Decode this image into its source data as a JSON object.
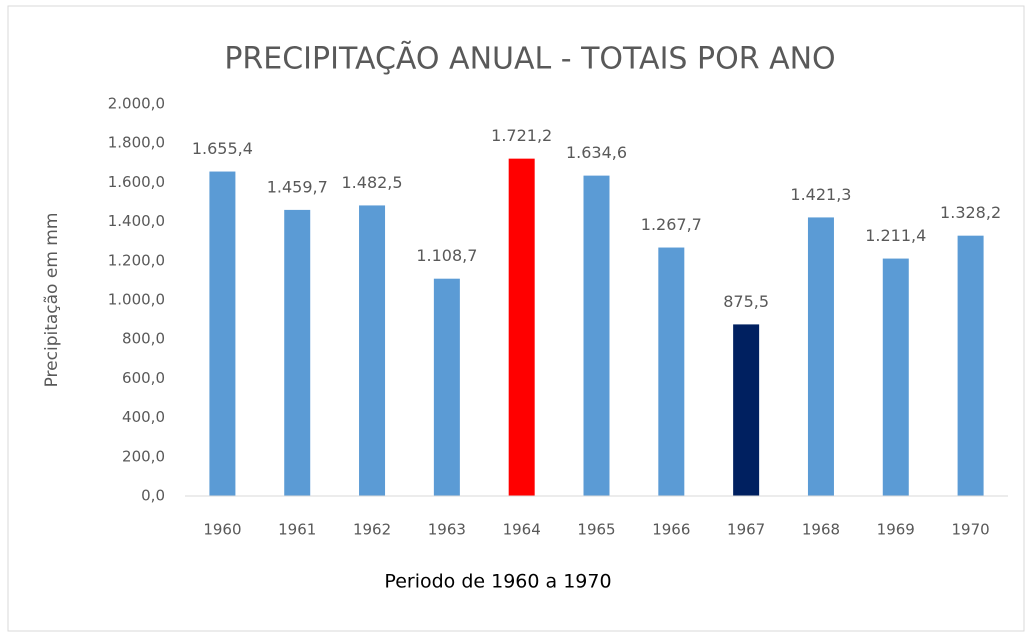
{
  "chart_data": {
    "type": "bar",
    "title": "PRECIPITAÇÃO ANUAL - TOTAIS POR ANO",
    "x_label": "Periodo de 1960 a 1970",
    "y_label": "Precipitação em mm",
    "categories": [
      "1960",
      "1961",
      "1962",
      "1963",
      "1964",
      "1965",
      "1966",
      "1967",
      "1968",
      "1969",
      "1970"
    ],
    "values": [
      1655.4,
      1459.7,
      1482.5,
      1108.7,
      1721.2,
      1634.6,
      1267.7,
      875.5,
      1421.3,
      1211.4,
      1328.2
    ],
    "value_labels": [
      "1.655,4",
      "1.459,7",
      "1.482,5",
      "1.108,7",
      "1.721,2",
      "1.634,6",
      "1.267,7",
      "875,5",
      "1.421,3",
      "1.211,4",
      "1.328,2"
    ],
    "colors": [
      "#5b9bd5",
      "#5b9bd5",
      "#5b9bd5",
      "#5b9bd5",
      "#ff0000",
      "#5b9bd5",
      "#5b9bd5",
      "#002060",
      "#5b9bd5",
      "#5b9bd5",
      "#5b9bd5"
    ],
    "ylim": [
      0,
      2000
    ],
    "yticks": [
      {
        "value": 0,
        "label": "0,0"
      },
      {
        "value": 200,
        "label": "200,0"
      },
      {
        "value": 400,
        "label": "400,0"
      },
      {
        "value": 600,
        "label": "600,0"
      },
      {
        "value": 800,
        "label": "800,0"
      },
      {
        "value": 1000,
        "label": "1.000,0"
      },
      {
        "value": 1200,
        "label": "1.200,0"
      },
      {
        "value": 1400,
        "label": "1.400,0"
      },
      {
        "value": 1600,
        "label": "1.600,0"
      },
      {
        "value": 1800,
        "label": "1.800,0"
      },
      {
        "value": 2000,
        "label": "2.000,0"
      }
    ],
    "grid": false
  }
}
